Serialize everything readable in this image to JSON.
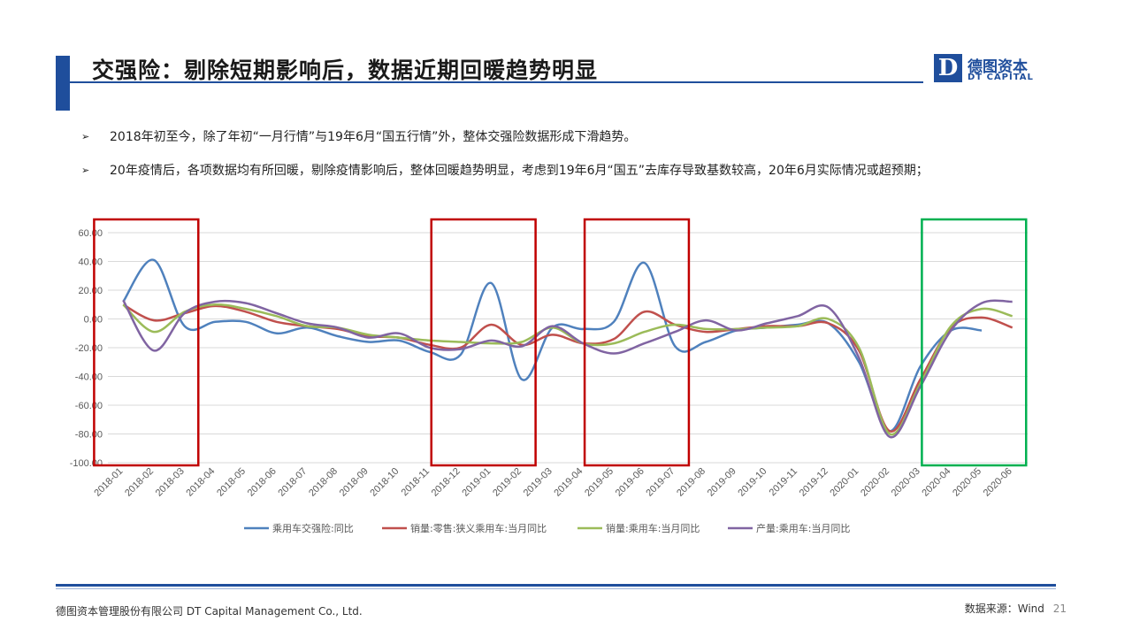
{
  "title": "交强险：剔除短期影响后，数据近期回暖趋势明显",
  "logo": {
    "cn": "德图资本",
    "en": "DT CAPITAL",
    "mark": "D"
  },
  "bullets": [
    "2018年初至今，除了年初“一月行情”与19年6月“国五行情”外，整体交强险数据形成下滑趋势。",
    "20年疫情后，各项数据均有所回暖，剔除疫情影响后，整体回暖趋势明显，考虑到19年6月“国五”去库存导致基数较高，20年6月实际情况或超预期；"
  ],
  "footer": {
    "company": "德图资本管理股份有限公司  DT Capital  Management  Co., Ltd.",
    "source": "数据来源：Wind",
    "page": "21"
  },
  "colors": {
    "accent": "#1f4e9c",
    "highlight_red": "#c00000",
    "highlight_green": "#00b050"
  },
  "chart_data": {
    "type": "line",
    "title": "",
    "xlabel": "",
    "ylabel": "",
    "ylim": [
      -100,
      60
    ],
    "yticks": [
      60,
      40,
      20,
      0,
      -20,
      -40,
      -60,
      -80,
      -100
    ],
    "ytick_format": "0.00",
    "grid": true,
    "legend": "bottom",
    "categories": [
      "2018-01",
      "2018-02",
      "2018-03",
      "2018-04",
      "2018-05",
      "2018-06",
      "2018-07",
      "2018-08",
      "2018-09",
      "2018-10",
      "2018-11",
      "2018-12",
      "2019-01",
      "2019-02",
      "2019-03",
      "2019-04",
      "2019-05",
      "2019-06",
      "2019-07",
      "2019-08",
      "2019-09",
      "2019-10",
      "2019-11",
      "2019-12",
      "2020-01",
      "2020-02",
      "2020-03",
      "2020-04",
      "2020-05",
      "2020-06"
    ],
    "series": [
      {
        "name": "乘用车交强险:同比",
        "color": "#4f81bd",
        "values": [
          12,
          41,
          -5,
          -2,
          -2,
          -10,
          -6,
          -12,
          -16,
          -15,
          -23,
          -25,
          25,
          -42,
          -6,
          -7,
          -2,
          39,
          -19,
          -16,
          -8,
          -6,
          -4,
          -3,
          -30,
          -78,
          -33,
          -8,
          -8,
          null
        ]
      },
      {
        "name": "销量:零售:狭义乘用车:当月同比",
        "color": "#c0504d",
        "values": [
          10,
          -1,
          4,
          9,
          5,
          -2,
          -5,
          -7,
          -12,
          -13,
          -18,
          -20,
          -4,
          -18,
          -11,
          -17,
          -14,
          5,
          -4,
          -9,
          -7,
          -5,
          -5,
          -3,
          -22,
          -78,
          -42,
          -6,
          1,
          -6
        ]
      },
      {
        "name": "销量:乘用车:当月同比",
        "color": "#9bbb59",
        "values": [
          10,
          -9,
          5,
          10,
          7,
          2,
          -5,
          -6,
          -11,
          -13,
          -15,
          -16,
          -17,
          -16,
          -6,
          -17,
          -17,
          -9,
          -4,
          -7,
          -7,
          -6,
          -5,
          0,
          -20,
          -80,
          -45,
          -5,
          7,
          2
        ]
      },
      {
        "name": "产量:乘用车:当月同比",
        "color": "#8064a2",
        "values": [
          13,
          -22,
          4,
          12,
          11,
          4,
          -3,
          -6,
          -13,
          -10,
          -20,
          -21,
          -15,
          -19,
          -5,
          -17,
          -24,
          -17,
          -9,
          -1,
          -8,
          -3,
          2,
          8,
          -27,
          -82,
          -47,
          -8,
          11,
          12
        ]
      }
    ],
    "highlights": [
      {
        "color": "red",
        "from": "2018-01",
        "to": "2018-03"
      },
      {
        "color": "red",
        "from": "2018-12",
        "to": "2019-02"
      },
      {
        "color": "red",
        "from": "2019-05",
        "to": "2019-07"
      },
      {
        "color": "green",
        "from": "2020-04",
        "to": "2020-06"
      }
    ]
  }
}
